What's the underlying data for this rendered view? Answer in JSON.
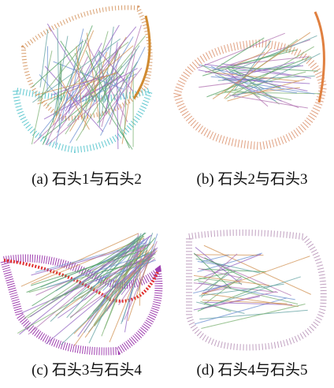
{
  "figure": {
    "panels": [
      {
        "caption": "(a) 石头1与石头2"
      },
      {
        "caption": "(b) 石头2与石头3"
      },
      {
        "caption": "(c) 石头3与石头4"
      },
      {
        "caption": "(d) 石头4与石头5"
      }
    ]
  }
}
